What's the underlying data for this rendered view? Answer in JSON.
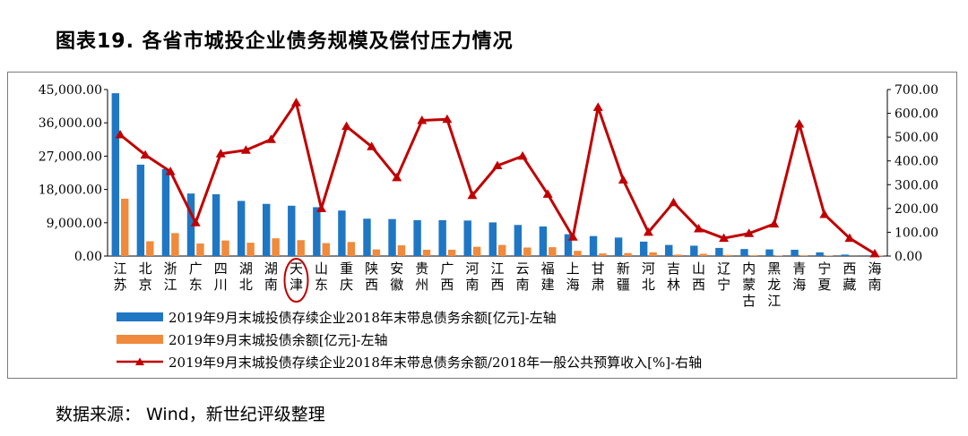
{
  "title": "图表19. 各省市城投企业债务规模及偿付压力情况",
  "source": "数据来源： Wind，新世纪评级整理",
  "colors": {
    "bar_blue": "#1f77c4",
    "bar_orange": "#f08a3c",
    "line_red": "#c00000"
  },
  "chart_data": {
    "type": "bar",
    "categories": [
      "江苏",
      "北京",
      "浙江",
      "广东",
      "四川",
      "湖北",
      "湖南",
      "天津",
      "山东",
      "重庆",
      "陕西",
      "安徽",
      "贵州",
      "广西",
      "河南",
      "江西",
      "云南",
      "福建",
      "上海",
      "甘肃",
      "新疆",
      "河北",
      "吉林",
      "山西",
      "辽宁",
      "内蒙古",
      "黑龙江",
      "青海",
      "宁夏",
      "西藏",
      "海南"
    ],
    "highlighted_category": "天津",
    "left_axis": {
      "ylim": [
        0,
        45000
      ],
      "ticks": [
        "0.00",
        "9,000.00",
        "18,000.00",
        "27,000.00",
        "36,000.00",
        "45,000.00"
      ],
      "tick_values": [
        0,
        9000,
        18000,
        27000,
        36000,
        45000
      ]
    },
    "right_axis": {
      "ylim": [
        0,
        700
      ],
      "ticks": [
        "0.00",
        "100.00",
        "200.00",
        "300.00",
        "400.00",
        "500.00",
        "600.00",
        "700.00"
      ],
      "tick_values": [
        0,
        100,
        200,
        300,
        400,
        500,
        600,
        700
      ]
    },
    "series": [
      {
        "name": "2019年9月末城投债存续企业2018年末带息债务余额[亿元]-左轴",
        "type": "bar",
        "axis": "left",
        "values": [
          44000,
          24700,
          23500,
          16900,
          16700,
          14900,
          14100,
          13600,
          13200,
          12300,
          10100,
          10000,
          9700,
          9700,
          9600,
          9100,
          8400,
          8000,
          5900,
          5400,
          5000,
          3900,
          3000,
          2800,
          2200,
          1900,
          1800,
          1700,
          1000,
          400,
          200
        ]
      },
      {
        "name": "2019年9月末城投债余额[亿元]-左轴",
        "type": "bar",
        "axis": "left",
        "values": [
          15500,
          4000,
          6200,
          3400,
          4200,
          3600,
          4800,
          4300,
          3500,
          3800,
          1800,
          2900,
          1700,
          1700,
          2500,
          3000,
          2300,
          2400,
          1400,
          700,
          800,
          1000,
          400,
          600,
          300,
          200,
          100,
          200,
          100,
          20,
          100
        ]
      },
      {
        "name": "2019年9月末城投债存续企业2018年末带息债务余额/2018年一般公共预算收入[%]-右轴",
        "type": "line",
        "axis": "right",
        "values": [
          510,
          425,
          355,
          140,
          430,
          445,
          490,
          645,
          200,
          545,
          460,
          330,
          570,
          575,
          255,
          380,
          420,
          260,
          80,
          625,
          320,
          100,
          225,
          115,
          75,
          95,
          135,
          555,
          175,
          75,
          10
        ]
      }
    ],
    "grid": false,
    "legend_position": "bottom"
  }
}
